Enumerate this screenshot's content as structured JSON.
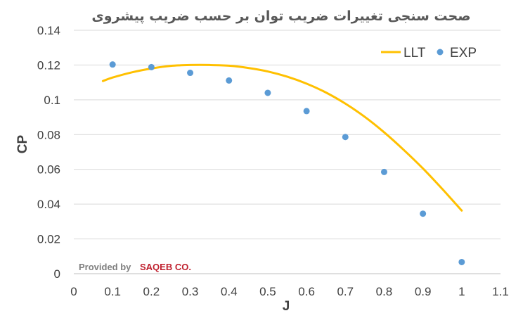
{
  "chart_data": {
    "type": "line",
    "title": "صحت سنجی تغییرات ضریب توان بر حسب ضریب پیشروی",
    "xlabel": "J",
    "ylabel": "CP",
    "xlim": [
      0,
      1.1
    ],
    "ylim": [
      0,
      0.14
    ],
    "x_ticks": [
      "0",
      "0.1",
      "0.2",
      "0.3",
      "0.4",
      "0.5",
      "0.6",
      "0.7",
      "0.8",
      "0.9",
      "1",
      "1.1"
    ],
    "y_ticks": [
      "0",
      "0.02",
      "0.04",
      "0.06",
      "0.08",
      "0.1",
      "0.12",
      "0.14"
    ],
    "grid": "horizontal",
    "legend_position": "top-right",
    "series": [
      {
        "name": "LLT",
        "kind": "line",
        "color": "#FFC000",
        "x": [
          0.075,
          0.1,
          0.15,
          0.2,
          0.25,
          0.3,
          0.35,
          0.4,
          0.45,
          0.5,
          0.55,
          0.6,
          0.65,
          0.7,
          0.75,
          0.8,
          0.85,
          0.9,
          0.95,
          1.0
        ],
        "y": [
          0.1108,
          0.1128,
          0.1158,
          0.118,
          0.1195,
          0.12,
          0.12,
          0.1196,
          0.1183,
          0.1163,
          0.1133,
          0.1093,
          0.1042,
          0.0978,
          0.0902,
          0.0813,
          0.0713,
          0.0605,
          0.0487,
          0.0363
        ]
      },
      {
        "name": "EXP",
        "kind": "scatter",
        "color": "#5B9BD5",
        "x": [
          0.1,
          0.2,
          0.3,
          0.4,
          0.5,
          0.6,
          0.7,
          0.8,
          0.9,
          1.0
        ],
        "y": [
          0.1203,
          0.1188,
          0.1155,
          0.1111,
          0.104,
          0.0935,
          0.0786,
          0.0585,
          0.0345,
          0.0067
        ]
      }
    ]
  },
  "watermark": {
    "prefix": "Provided by",
    "brand": "SAQEB CO."
  }
}
